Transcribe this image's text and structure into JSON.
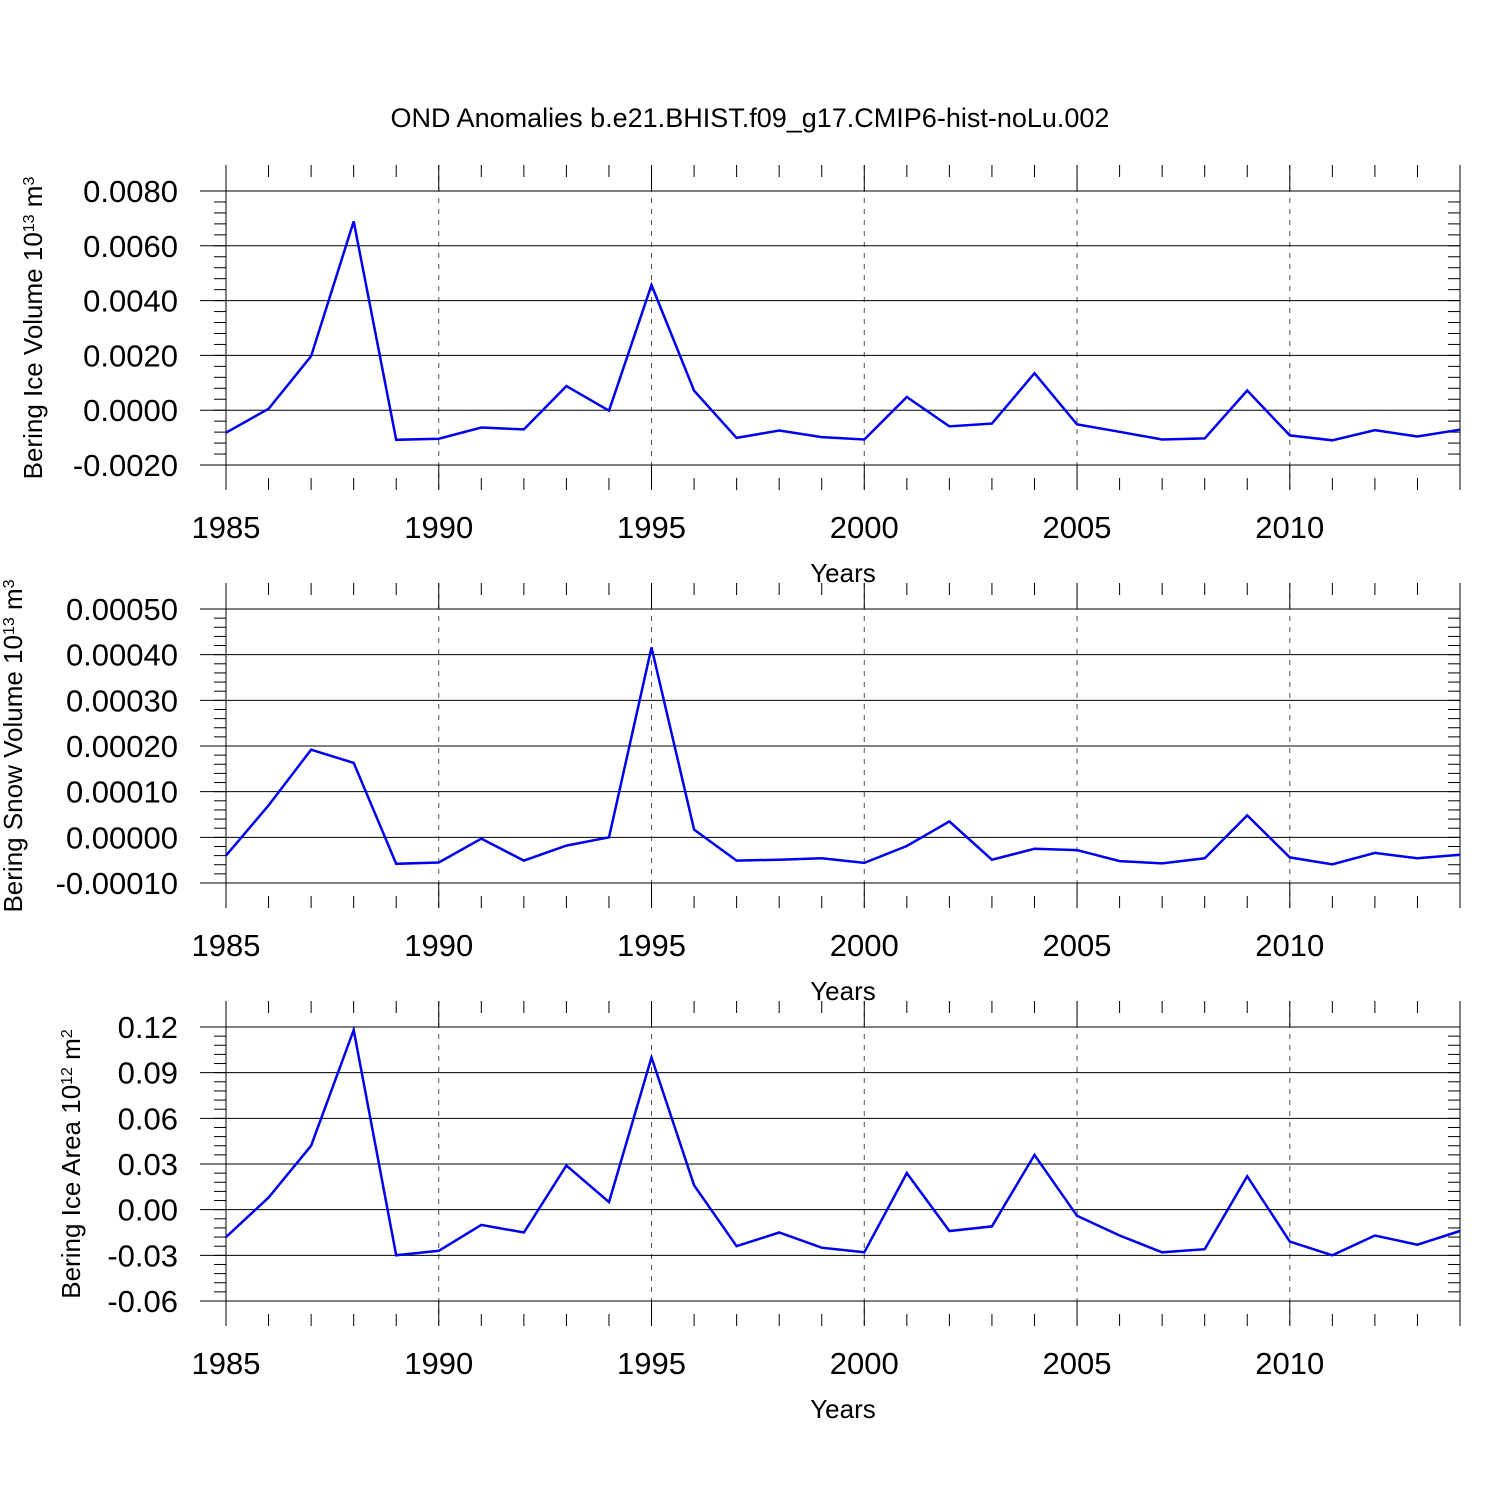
{
  "title": "OND Anomalies b.e21.BHIST.f09_g17.CMIP6-hist-noLu.002",
  "chart_data": [
    {
      "type": "line",
      "title": "OND Anomalies b.e21.BHIST.f09_g17.CMIP6-hist-noLu.002",
      "xlabel": "Years",
      "ylabel_base": "Bering Ice Volume 10",
      "ylabel_exp": "13",
      "ylabel_unit": " m",
      "ylabel_unit_exp": "3",
      "xlim": [
        1985,
        2014
      ],
      "ylim": [
        -0.002,
        0.008
      ],
      "y_ticks": [
        -0.002,
        0,
        0.002,
        0.004,
        0.006,
        0.008
      ],
      "y_tick_labels": [
        "-0.0020",
        "0.0000",
        "0.0020",
        "0.0040",
        "0.0060",
        "0.0080"
      ],
      "x_ticks": [
        1985,
        1990,
        1995,
        2000,
        2005,
        2010
      ],
      "x_tick_labels": [
        "1985",
        "1990",
        "1995",
        "2000",
        "2005",
        "2010"
      ],
      "grid": "dashed vertical lines at 1990, 1995, 2000, 2005, 2010",
      "series": [
        {
          "name": "Bering Ice Volume",
          "color": "#0000ee",
          "x": [
            1985,
            1986,
            1987,
            1988,
            1989,
            1990,
            1991,
            1992,
            1993,
            1994,
            1995,
            1996,
            1997,
            1998,
            1999,
            2000,
            2001,
            2002,
            2003,
            2004,
            2005,
            2006,
            2007,
            2008,
            2009,
            2010,
            2011,
            2012,
            2013,
            2014
          ],
          "values": [
            -0.00082,
            5e-05,
            0.00197,
            0.00689,
            -0.00108,
            -0.00104,
            -0.00063,
            -0.0007,
            0.00088,
            -2e-05,
            0.00457,
            0.00071,
            -0.00101,
            -0.00074,
            -0.00098,
            -0.00107,
            0.00048,
            -0.00059,
            -0.00049,
            0.00135,
            -0.00052,
            -0.00079,
            -0.00107,
            -0.00103,
            0.00072,
            -0.00092,
            -0.0011,
            -0.00073,
            -0.00096,
            -0.00071
          ]
        }
      ]
    },
    {
      "type": "line",
      "title": "",
      "xlabel": "Years",
      "ylabel_base": "Bering Snow Volume 10",
      "ylabel_exp": "13",
      "ylabel_unit": " m",
      "ylabel_unit_exp": "3",
      "xlim": [
        1985,
        2014
      ],
      "ylim": [
        -0.0001,
        0.0005
      ],
      "y_ticks": [
        -0.0001,
        0,
        0.0001,
        0.0002,
        0.0003,
        0.0004,
        0.0005
      ],
      "y_tick_labels": [
        "-0.00010",
        "0.00000",
        "0.00010",
        "0.00020",
        "0.00030",
        "0.00040",
        "0.00050"
      ],
      "x_ticks": [
        1985,
        1990,
        1995,
        2000,
        2005,
        2010
      ],
      "x_tick_labels": [
        "1985",
        "1990",
        "1995",
        "2000",
        "2005",
        "2010"
      ],
      "grid": "dashed vertical lines at 1990, 1995, 2000, 2005, 2010",
      "series": [
        {
          "name": "Bering Snow Volume",
          "color": "#0000ee",
          "x": [
            1985,
            1986,
            1987,
            1988,
            1989,
            1990,
            1991,
            1992,
            1993,
            1994,
            1995,
            1996,
            1997,
            1998,
            1999,
            2000,
            2001,
            2002,
            2003,
            2004,
            2005,
            2006,
            2007,
            2008,
            2009,
            2010,
            2011,
            2012,
            2013,
            2014
          ],
          "values": [
            -4e-05,
            7e-05,
            0.000192,
            0.000163,
            -5.8e-05,
            -5.5e-05,
            -3e-06,
            -5.1e-05,
            -1.8e-05,
            0.0,
            0.000416,
            1.7e-05,
            -5.1e-05,
            -4.9e-05,
            -4.6e-05,
            -5.6e-05,
            -1.9e-05,
            3.5e-05,
            -4.9e-05,
            -2.5e-05,
            -2.8e-05,
            -5.2e-05,
            -5.7e-05,
            -4.6e-05,
            4.8e-05,
            -4.4e-05,
            -5.9e-05,
            -3.4e-05,
            -4.6e-05,
            -3.8e-05
          ]
        }
      ]
    },
    {
      "type": "line",
      "title": "",
      "xlabel": "Years",
      "ylabel_base": "Bering Ice Area 10",
      "ylabel_exp": "12",
      "ylabel_unit": " m",
      "ylabel_unit_exp": "2",
      "xlim": [
        1985,
        2014
      ],
      "ylim": [
        -0.06,
        0.12
      ],
      "y_ticks": [
        -0.06,
        -0.03,
        0,
        0.03,
        0.06,
        0.09,
        0.12
      ],
      "y_tick_labels": [
        "-0.06",
        "-0.03",
        "0.00",
        "0.03",
        "0.06",
        "0.09",
        "0.12"
      ],
      "x_ticks": [
        1985,
        1990,
        1995,
        2000,
        2005,
        2010
      ],
      "x_tick_labels": [
        "1985",
        "1990",
        "1995",
        "2000",
        "2005",
        "2010"
      ],
      "grid": "dashed vertical lines at 1990, 1995, 2000, 2005, 2010",
      "series": [
        {
          "name": "Bering Ice Area",
          "color": "#0000ee",
          "x": [
            1985,
            1986,
            1987,
            1988,
            1989,
            1990,
            1991,
            1992,
            1993,
            1994,
            1995,
            1996,
            1997,
            1998,
            1999,
            2000,
            2001,
            2002,
            2003,
            2004,
            2005,
            2006,
            2007,
            2008,
            2009,
            2010,
            2011,
            2012,
            2013,
            2014
          ],
          "values": [
            -0.018,
            0.008,
            0.042,
            0.118,
            -0.03,
            -0.027,
            -0.01,
            -0.015,
            0.029,
            0.005,
            0.1,
            0.016,
            -0.024,
            -0.015,
            -0.025,
            -0.028,
            0.024,
            -0.014,
            -0.011,
            0.036,
            -0.004,
            -0.017,
            -0.028,
            -0.026,
            0.022,
            -0.021,
            -0.03,
            -0.017,
            -0.023,
            -0.014
          ]
        }
      ]
    }
  ]
}
